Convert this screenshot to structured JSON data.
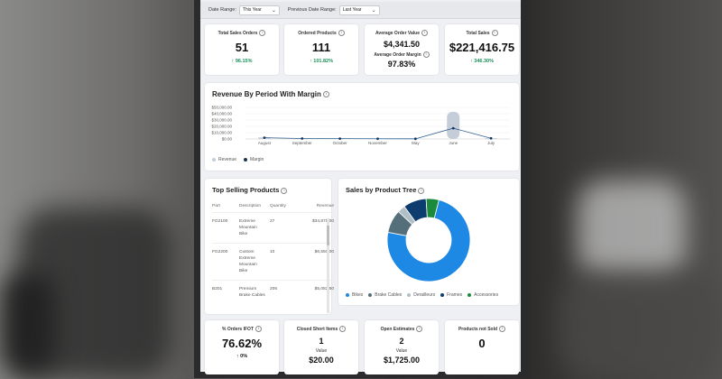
{
  "filters": {
    "date_range_label": "Date Range:",
    "date_range_value": "This Year",
    "previous_range_label": "Previous Date Range:",
    "previous_range_value": "Last Year"
  },
  "kpis": {
    "total_sales_orders": {
      "title": "Total Sales Orders",
      "value": "51",
      "change": "96.15%"
    },
    "ordered_products": {
      "title": "Ordered Products",
      "value": "111",
      "change": "101.82%"
    },
    "average_order": {
      "title": "Average Order Value",
      "value": "$4,341.50",
      "margin_title": "Average Order Margin",
      "margin_value": "97.83%"
    },
    "total_sales": {
      "title": "Total Sales",
      "value": "$221,416.75",
      "change": "346.30%"
    }
  },
  "revenue_chart": {
    "title": "Revenue By Period With Margin",
    "legend_revenue": "Revenue",
    "legend_margin": "Margin"
  },
  "chart_data": {
    "type": "bar",
    "categories": [
      "August",
      "September",
      "October",
      "November",
      "May",
      "June",
      "July"
    ],
    "y_ticks": [
      "$50,000.00",
      "$40,000.00",
      "$30,000.00",
      "$20,000.00",
      "$10,000.00",
      "$0.00"
    ],
    "ylim": [
      0,
      50000
    ],
    "series": [
      {
        "name": "Revenue",
        "type": "bar",
        "values": [
          2500,
          800,
          600,
          400,
          300,
          43000,
          1200
        ]
      },
      {
        "name": "Margin",
        "type": "line",
        "values": [
          2000,
          700,
          500,
          350,
          250,
          17000,
          1000
        ]
      }
    ],
    "legend": "bottom-left"
  },
  "top_selling": {
    "title": "Top Selling Products",
    "columns": [
      "Part",
      "Description",
      "Quantity",
      "Revenue"
    ],
    "rows": [
      [
        "FG2100",
        "Extreme Mountain Bike",
        "27",
        "$34,875.00"
      ],
      [
        "FG2200",
        "Custom Extreme Mountain Bike",
        "10",
        "$6,550.00"
      ],
      [
        "B201",
        "Premium Brake Cables",
        "206",
        "$5,082.50"
      ]
    ]
  },
  "product_tree": {
    "title": "Sales by Product Tree",
    "slices": [
      {
        "name": "Bikes",
        "value": 74,
        "color": "#1e88e5"
      },
      {
        "name": "Brake Cables",
        "value": 9,
        "color": "#546e7a"
      },
      {
        "name": "Derailleurs",
        "value": 3,
        "color": "#b0bec5"
      },
      {
        "name": "Frames",
        "value": 9,
        "color": "#0d3c6e"
      },
      {
        "name": "Accessories",
        "value": 5,
        "color": "#1b8a3a"
      }
    ]
  },
  "bottom_kpis": {
    "orders_ifot": {
      "title": "% Orders IFOT",
      "value": "76.62%",
      "change": "0%"
    },
    "closed_short": {
      "title": "Closed Short Items",
      "count": "1",
      "value_label": "Value",
      "value": "$20.00"
    },
    "open_estimates": {
      "title": "Open Estimates",
      "count": "2",
      "value_label": "Value",
      "value": "$1,725.00"
    },
    "not_sold": {
      "title": "Products not Sold",
      "value": "0"
    }
  },
  "colors": {
    "accent_green": "#1a8f5a",
    "revenue_bar": "#c5ced8",
    "margin_line": "#2f5f8f"
  }
}
